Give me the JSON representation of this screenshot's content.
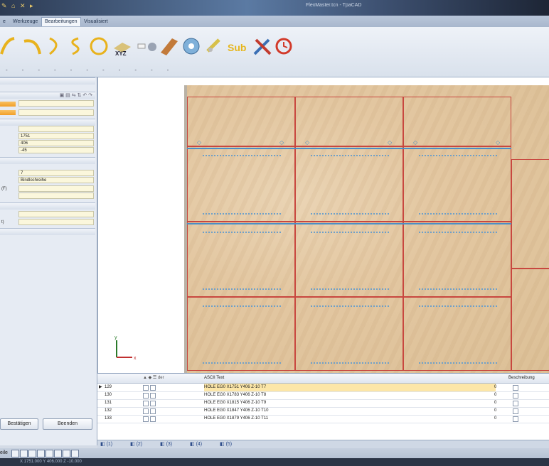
{
  "window": {
    "title": "FlexMaster.tcn - TpaCAD",
    "quick_access": "✎ ⌂ ✕ ▸"
  },
  "tabs": [
    {
      "label": "e"
    },
    {
      "label": "Werkzeuge"
    },
    {
      "label": "Bearbeitungen",
      "active": true
    },
    {
      "label": "Visualisiert"
    }
  ],
  "ribbon": {
    "tools": [
      {
        "name": "arc-tool-icon"
      },
      {
        "name": "arc-open-icon"
      },
      {
        "name": "arc-reverse-icon"
      },
      {
        "name": "spiral-icon"
      },
      {
        "name": "circle-icon"
      },
      {
        "name": "xyz-plane-icon",
        "text": "XYZ"
      },
      {
        "name": "point-icon"
      },
      {
        "name": "panel-icon"
      },
      {
        "name": "saw-blade-icon"
      },
      {
        "name": "drill-icon"
      },
      {
        "name": "sub-program-icon",
        "text": "Sub"
      },
      {
        "name": "cutting-tool-icon"
      },
      {
        "name": "clock-icon"
      }
    ]
  },
  "left_panel": {
    "fields": [
      {
        "label": "",
        "value": "1751"
      },
      {
        "label": "",
        "value": "406"
      },
      {
        "label": "",
        "value": "-45"
      },
      {
        "label": "",
        "value": "7"
      },
      {
        "label": "",
        "value": "Bindlochreihe"
      },
      {
        "label": "(F)",
        "value": ""
      },
      {
        "label": "t)",
        "value": ""
      }
    ],
    "confirm_button": "Bestätigen",
    "close_button": "Beenden"
  },
  "viewport": {
    "axis_y": "y",
    "axis_x": "x"
  },
  "grid": {
    "col_header": "ASCII Text",
    "col_header_right": "Beschreibung",
    "col_header_icons": "der",
    "rows": [
      {
        "id": "129",
        "cmd": "HOLE EG0 X1751 Y406 Z-10 T7",
        "val": "0",
        "selected": true
      },
      {
        "id": "130",
        "cmd": "HOLE EG0 X1783 Y406 Z-10 T8",
        "val": "0"
      },
      {
        "id": "131",
        "cmd": "HOLE EG0 X1815 Y406 Z-10 T9",
        "val": "0"
      },
      {
        "id": "132",
        "cmd": "HOLE EG0 X1847 Y406 Z-10 T10",
        "val": "0"
      },
      {
        "id": "133",
        "cmd": "HOLE EG0 X1879 Y406 Z-10 T11",
        "val": "0"
      }
    ]
  },
  "view_tabs": [
    "(1)",
    "(2)",
    "(3)",
    "(4)",
    "(5)"
  ],
  "status": {
    "left_label": "eile",
    "bottom_text": "X 1751.000 Y 406.000 Z -10.000"
  }
}
